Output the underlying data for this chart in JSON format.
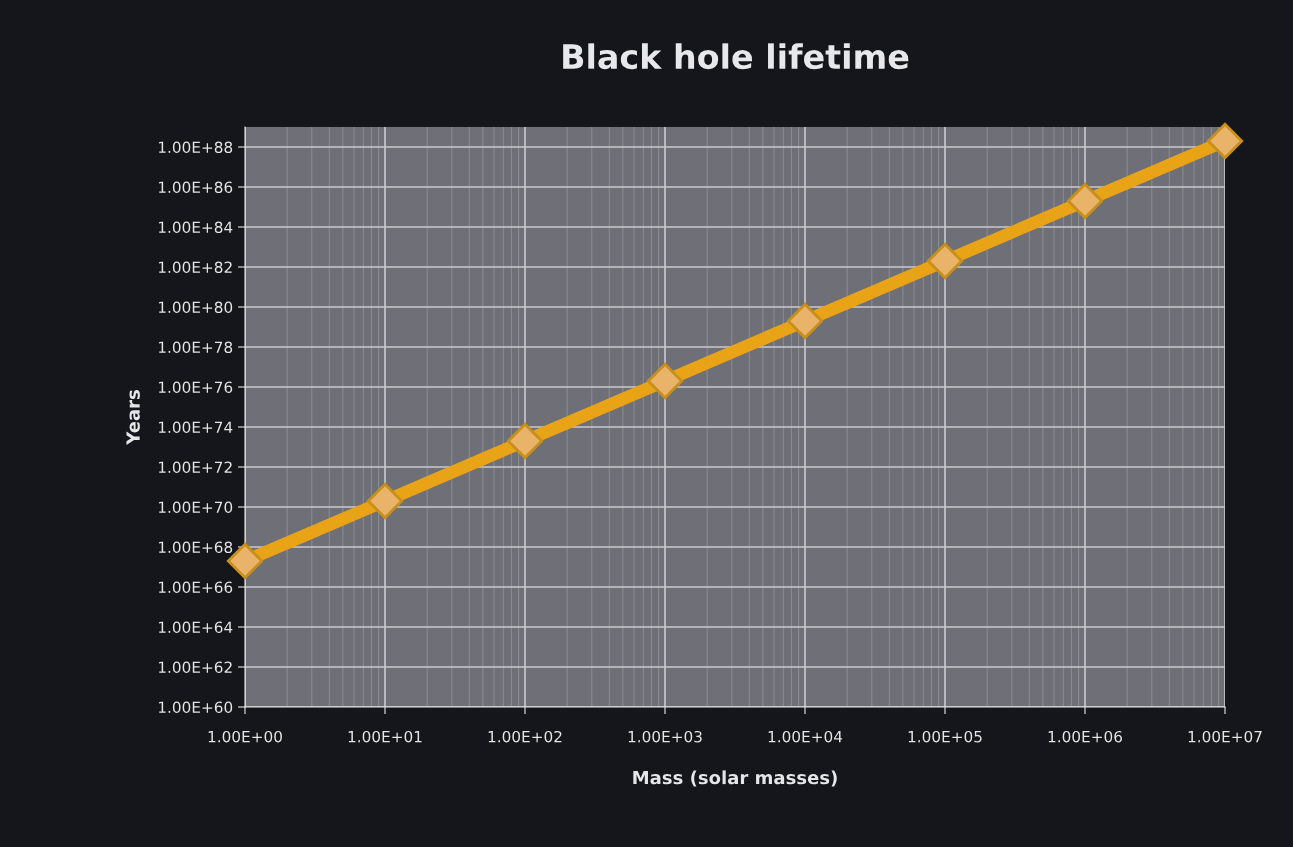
{
  "chart_data": {
    "type": "line",
    "title": "Black hole lifetime",
    "xlabel": "Mass (solar masses)",
    "ylabel": "Years",
    "x": [
      1,
      10,
      100,
      1000,
      10000,
      100000,
      1000000,
      10000000
    ],
    "series": [
      {
        "color": "#e8a317",
        "values": [
          2e+67,
          2e+70,
          2e+73,
          2e+76,
          2e+79,
          2e+82,
          2e+85,
          2e+88
        ]
      }
    ],
    "log": "xy",
    "marker": "diamond",
    "line_style": "solid",
    "grid": true,
    "legend": false,
    "xlim": [
      1,
      10000000
    ],
    "ylim": [
      1e+60,
      1e+89
    ],
    "xticks": [
      {
        "value": 1,
        "label": "1.00E+00"
      },
      {
        "value": 10,
        "label": "1.00E+01"
      },
      {
        "value": 100,
        "label": "1.00E+02"
      },
      {
        "value": 1000,
        "label": "1.00E+03"
      },
      {
        "value": 10000,
        "label": "1.00E+04"
      },
      {
        "value": 100000,
        "label": "1.00E+05"
      },
      {
        "value": 1000000,
        "label": "1.00E+06"
      },
      {
        "value": 10000000,
        "label": "1.00E+07"
      }
    ],
    "yticks": [
      {
        "value": 1e+60,
        "label": "1.00E+60"
      },
      {
        "value": 1e+62,
        "label": "1.00E+62"
      },
      {
        "value": 1e+64,
        "label": "1.00E+64"
      },
      {
        "value": 1e+66,
        "label": "1.00E+66"
      },
      {
        "value": 1e+68,
        "label": "1.00E+68"
      },
      {
        "value": 1e+70,
        "label": "1.00E+70"
      },
      {
        "value": 1e+72,
        "label": "1.00E+72"
      },
      {
        "value": 1e+74,
        "label": "1.00E+74"
      },
      {
        "value": 1e+76,
        "label": "1.00E+76"
      },
      {
        "value": 1e+78,
        "label": "1.00E+78"
      },
      {
        "value": 1e+80,
        "label": "1.00E+80"
      },
      {
        "value": 1e+82,
        "label": "1.00E+82"
      },
      {
        "value": 1e+84,
        "label": "1.00E+84"
      },
      {
        "value": 1e+86,
        "label": "1.00E+86"
      },
      {
        "value": 1e+88,
        "label": "1.00E+88"
      }
    ]
  }
}
